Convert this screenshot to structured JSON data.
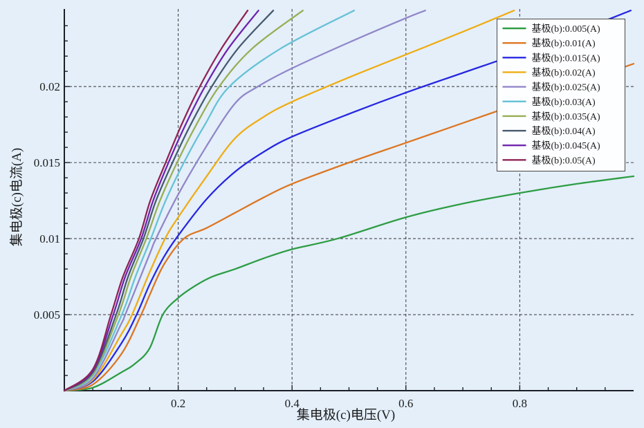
{
  "chart_data": {
    "type": "line",
    "title": "",
    "xlabel": "集电极(c)电压(V)",
    "ylabel": "集电极(c)电流(A)",
    "xlim": [
      0,
      1.0
    ],
    "ylim": [
      0,
      0.0251
    ],
    "grid": "dashed on major ticks",
    "x_ticks": {
      "major": [
        0.2,
        0.4,
        0.6,
        0.8
      ],
      "major_labels": [
        "0.2",
        "0.4",
        "0.6",
        "0.8"
      ],
      "minor_step": 0.05
    },
    "y_ticks": {
      "major": [
        0.005,
        0.01,
        0.015,
        0.02
      ],
      "major_labels": [
        "0.005",
        "0.01",
        "0.015",
        "0.02"
      ],
      "minor_step": 0.001
    },
    "legend": {
      "position": "top-right",
      "background": "#fdfeff",
      "border": "#444444"
    },
    "series": [
      {
        "name": "基极(b):0.005(A)",
        "base_current_A": 0.005,
        "color": "#2e9d44",
        "points": [
          [
            0,
            0
          ],
          [
            0.05,
            0.0002
          ],
          [
            0.1,
            0.0012
          ],
          [
            0.125,
            0.0018
          ],
          [
            0.15,
            0.0028
          ],
          [
            0.173,
            0.005
          ],
          [
            0.2,
            0.0061
          ],
          [
            0.23,
            0.0069
          ],
          [
            0.26,
            0.0075
          ],
          [
            0.3,
            0.008
          ],
          [
            0.35,
            0.0087
          ],
          [
            0.4,
            0.0093
          ],
          [
            0.48,
            0.01
          ],
          [
            0.6,
            0.0114
          ],
          [
            0.7,
            0.0123
          ],
          [
            0.8,
            0.013
          ],
          [
            0.9,
            0.0136
          ],
          [
            1.0,
            0.0141
          ]
        ]
      },
      {
        "name": "基极(b):0.01(A)",
        "base_current_A": 0.01,
        "color": "#dd7621",
        "points": [
          [
            0,
            0
          ],
          [
            0.05,
            0.0004
          ],
          [
            0.1,
            0.0024
          ],
          [
            0.135,
            0.005
          ],
          [
            0.15,
            0.0063
          ],
          [
            0.175,
            0.0083
          ],
          [
            0.21,
            0.01
          ],
          [
            0.25,
            0.0107
          ],
          [
            0.3,
            0.0117
          ],
          [
            0.35,
            0.0127
          ],
          [
            0.4,
            0.0136
          ],
          [
            0.5,
            0.015
          ],
          [
            0.6,
            0.0163
          ],
          [
            0.7,
            0.0176
          ],
          [
            0.8,
            0.0189
          ],
          [
            0.9,
            0.0202
          ],
          [
            1.0,
            0.0215
          ]
        ]
      },
      {
        "name": "基极(b):0.015(A)",
        "base_current_A": 0.015,
        "color": "#2727e0",
        "points": [
          [
            0,
            0
          ],
          [
            0.05,
            0.0006
          ],
          [
            0.1,
            0.0031
          ],
          [
            0.127,
            0.005
          ],
          [
            0.15,
            0.007
          ],
          [
            0.175,
            0.0088
          ],
          [
            0.2,
            0.0102
          ],
          [
            0.25,
            0.0126
          ],
          [
            0.3,
            0.0144
          ],
          [
            0.35,
            0.0157
          ],
          [
            0.4,
            0.0167
          ],
          [
            0.5,
            0.0182
          ],
          [
            0.6,
            0.0196
          ],
          [
            0.7,
            0.0209
          ],
          [
            0.8,
            0.0222
          ],
          [
            0.9,
            0.0236
          ],
          [
            0.995,
            0.025
          ]
        ]
      },
      {
        "name": "基极(b):0.02(A)",
        "base_current_A": 0.02,
        "color": "#efad13",
        "points": [
          [
            0,
            0
          ],
          [
            0.05,
            0.0007
          ],
          [
            0.1,
            0.0037
          ],
          [
            0.119,
            0.005
          ],
          [
            0.15,
            0.0078
          ],
          [
            0.177,
            0.01
          ],
          [
            0.2,
            0.0114
          ],
          [
            0.25,
            0.0141
          ],
          [
            0.3,
            0.0166
          ],
          [
            0.35,
            0.018
          ],
          [
            0.4,
            0.019
          ],
          [
            0.5,
            0.0206
          ],
          [
            0.6,
            0.0221
          ],
          [
            0.7,
            0.0236
          ],
          [
            0.79,
            0.025
          ]
        ]
      },
      {
        "name": "基极(b):0.025(A)",
        "base_current_A": 0.025,
        "color": "#9186c8",
        "points": [
          [
            0,
            0
          ],
          [
            0.05,
            0.0008
          ],
          [
            0.1,
            0.0044
          ],
          [
            0.107,
            0.005
          ],
          [
            0.15,
            0.009
          ],
          [
            0.161,
            0.01
          ],
          [
            0.2,
            0.0129
          ],
          [
            0.25,
            0.0161
          ],
          [
            0.3,
            0.0189
          ],
          [
            0.34,
            0.02
          ],
          [
            0.4,
            0.0212
          ],
          [
            0.5,
            0.0229
          ],
          [
            0.6,
            0.0245
          ],
          [
            0.634,
            0.025
          ]
        ]
      },
      {
        "name": "基极(b):0.03(A)",
        "base_current_A": 0.03,
        "color": "#66c2d6",
        "points": [
          [
            0,
            0
          ],
          [
            0.05,
            0.001
          ],
          [
            0.101,
            0.005
          ],
          [
            0.125,
            0.0075
          ],
          [
            0.152,
            0.01
          ],
          [
            0.178,
            0.0125
          ],
          [
            0.21,
            0.015
          ],
          [
            0.247,
            0.0175
          ],
          [
            0.29,
            0.02
          ],
          [
            0.38,
            0.0225
          ],
          [
            0.509,
            0.025
          ]
        ]
      },
      {
        "name": "基极(b):0.035(A)",
        "base_current_A": 0.035,
        "color": "#97ae53",
        "points": [
          [
            0,
            0
          ],
          [
            0.05,
            0.0011
          ],
          [
            0.095,
            0.005
          ],
          [
            0.117,
            0.0075
          ],
          [
            0.144,
            0.01
          ],
          [
            0.168,
            0.0125
          ],
          [
            0.198,
            0.015
          ],
          [
            0.232,
            0.0175
          ],
          [
            0.272,
            0.02
          ],
          [
            0.33,
            0.0225
          ],
          [
            0.419,
            0.025
          ]
        ]
      },
      {
        "name": "基极(b):0.04(A)",
        "base_current_A": 0.04,
        "color": "#46596e",
        "points": [
          [
            0,
            0
          ],
          [
            0.05,
            0.0012
          ],
          [
            0.091,
            0.005
          ],
          [
            0.112,
            0.0075
          ],
          [
            0.139,
            0.01
          ],
          [
            0.161,
            0.0125
          ],
          [
            0.19,
            0.015
          ],
          [
            0.222,
            0.0175
          ],
          [
            0.259,
            0.02
          ],
          [
            0.305,
            0.0225
          ],
          [
            0.367,
            0.025
          ]
        ]
      },
      {
        "name": "基极(b):0.045(A)",
        "base_current_A": 0.045,
        "color": "#6e24ae",
        "points": [
          [
            0,
            0
          ],
          [
            0.05,
            0.0013
          ],
          [
            0.086,
            0.005
          ],
          [
            0.107,
            0.0075
          ],
          [
            0.135,
            0.01
          ],
          [
            0.156,
            0.0125
          ],
          [
            0.183,
            0.015
          ],
          [
            0.213,
            0.0175
          ],
          [
            0.247,
            0.02
          ],
          [
            0.288,
            0.0225
          ],
          [
            0.341,
            0.025
          ]
        ]
      },
      {
        "name": "基极(b):0.05(A)",
        "base_current_A": 0.05,
        "color": "#8f2456",
        "points": [
          [
            0,
            0
          ],
          [
            0.05,
            0.0014
          ],
          [
            0.082,
            0.005
          ],
          [
            0.103,
            0.0075
          ],
          [
            0.131,
            0.01
          ],
          [
            0.151,
            0.0125
          ],
          [
            0.178,
            0.015
          ],
          [
            0.206,
            0.0175
          ],
          [
            0.238,
            0.02
          ],
          [
            0.276,
            0.0225
          ],
          [
            0.322,
            0.025
          ]
        ]
      }
    ]
  },
  "colors": {
    "background": "#e4effa",
    "axis": "#1b1f28",
    "grid": "#2b2b2b",
    "legend_bg": "#fdfeff",
    "legend_border": "#444444",
    "text": "#1c1c1c"
  }
}
